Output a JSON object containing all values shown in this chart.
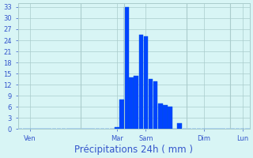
{
  "bar_values": [
    0,
    0,
    0,
    0,
    0,
    0,
    0,
    0,
    0,
    0,
    0,
    0,
    0,
    0,
    0,
    0,
    0,
    0,
    0,
    0,
    0.5,
    8,
    33,
    14,
    14.5,
    25.5,
    25,
    13.5,
    13,
    7,
    6.5,
    6,
    0,
    1.5,
    0,
    0,
    0,
    0,
    0,
    0,
    0,
    0,
    0,
    0,
    0,
    0,
    0,
    0
  ],
  "bar_color": "#0044ff",
  "bar_edge_color": "#0055dd",
  "background_color": "#d8f5f5",
  "grid_color": "#aacccc",
  "axis_label_color": "#3355cc",
  "tick_color": "#3355cc",
  "xlabel": "Précipitations 24h ( mm )",
  "xlabel_fontsize": 8.5,
  "ytick_values": [
    0,
    3,
    6,
    9,
    12,
    15,
    18,
    21,
    24,
    27,
    30,
    33
  ],
  "ylim": [
    0,
    34
  ],
  "day_labels": [
    "Ven",
    "Mar",
    "Sam",
    "Dim",
    "Lun"
  ],
  "day_tick_positions": [
    2,
    20,
    26,
    38,
    46
  ],
  "day_line_positions": [
    0,
    13,
    22,
    35,
    44
  ],
  "xlim": [
    -0.5,
    47.5
  ],
  "num_bars": 48
}
